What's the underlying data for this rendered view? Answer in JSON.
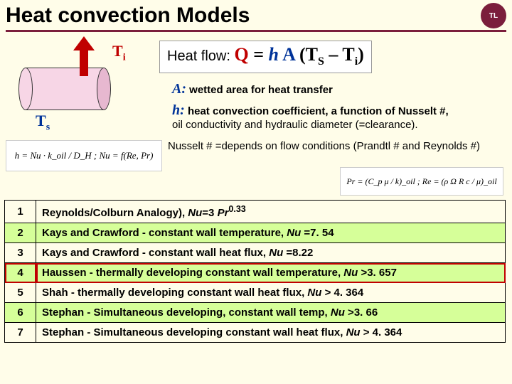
{
  "title": "Heat convection Models",
  "logo_text": "TL",
  "diagram": {
    "ti": "T",
    "ti_sub": "i",
    "ts": "T",
    "ts_sub": "s",
    "arrow_color": "#c00000",
    "cylinder_fill": "#f7d6e6"
  },
  "heatflow": {
    "label": "Heat flow: ",
    "Q": "Q",
    "eq1": " = ",
    "h": "h",
    "A": " A ",
    "paren_open": "(T",
    "sub_s": "S",
    "minus": " – T",
    "sub_i": "i",
    "paren_close": ")"
  },
  "defs": {
    "a_sym": "A:",
    "a_text": " wetted area for heat transfer",
    "h_sym": "h:",
    "h_text": " heat convection coefficient, a function of Nusselt #, ",
    "h_text2": "oil conductivity and hydraulic diameter (=clearance)."
  },
  "nusselt_text": "Nusselt # =depends on flow conditions (Prandtl # and Reynolds #)",
  "formula1": "h = Nu · k_oil / D_H ;  Nu = f(Re, Pr)",
  "formula2": "Pr = (C_p μ / k)_oil ;  Re = (ρ Ω R c / μ)_oil",
  "rows": [
    {
      "n": "1",
      "hl": false,
      "red": false,
      "html": "<span class='b'>Reynolds/Colburn Analogy), <span class='i'>Nu</span>=3 <span class='i'>Pr</span><sup>0.33</sup></span>"
    },
    {
      "n": "2",
      "hl": true,
      "red": false,
      "html": "<span class='b'>Kays and Crawford  - constant wall temperature, <span class='i'>Nu</span> =7. 54</span>"
    },
    {
      "n": "3",
      "hl": false,
      "red": false,
      "html": "<span class='b'>Kays and Crawford  - constant wall heat flux, <span class='i'>Nu</span> =8.22</span>"
    },
    {
      "n": "4",
      "hl": true,
      "red": true,
      "html": "<span class='b'>Haussen  - thermally developing constant wall temperature, <span class='i'>Nu</span> >3. 657</span>"
    },
    {
      "n": "5",
      "hl": false,
      "red": false,
      "html": "<span class='b'>Shah  -    thermally developing constant wall heat flux, <span class='i'>Nu</span> > 4. 364</span>"
    },
    {
      "n": "6",
      "hl": true,
      "red": false,
      "html": "<span class='b'>Stephan  - Simultaneous developing, constant wall temp, <span class='i'>Nu</span> >3. 66</span>"
    },
    {
      "n": "7",
      "hl": false,
      "red": false,
      "html": "<span class='b'>Stephan  - Simultaneous developing constant wall heat flux,  <span class='i'>Nu</span> > 4. 364</span>"
    }
  ],
  "colors": {
    "bg": "#fffde9",
    "accent": "#7b1e3c",
    "red": "#c00000",
    "blue": "#003399",
    "highlight": "#d6ff99"
  }
}
